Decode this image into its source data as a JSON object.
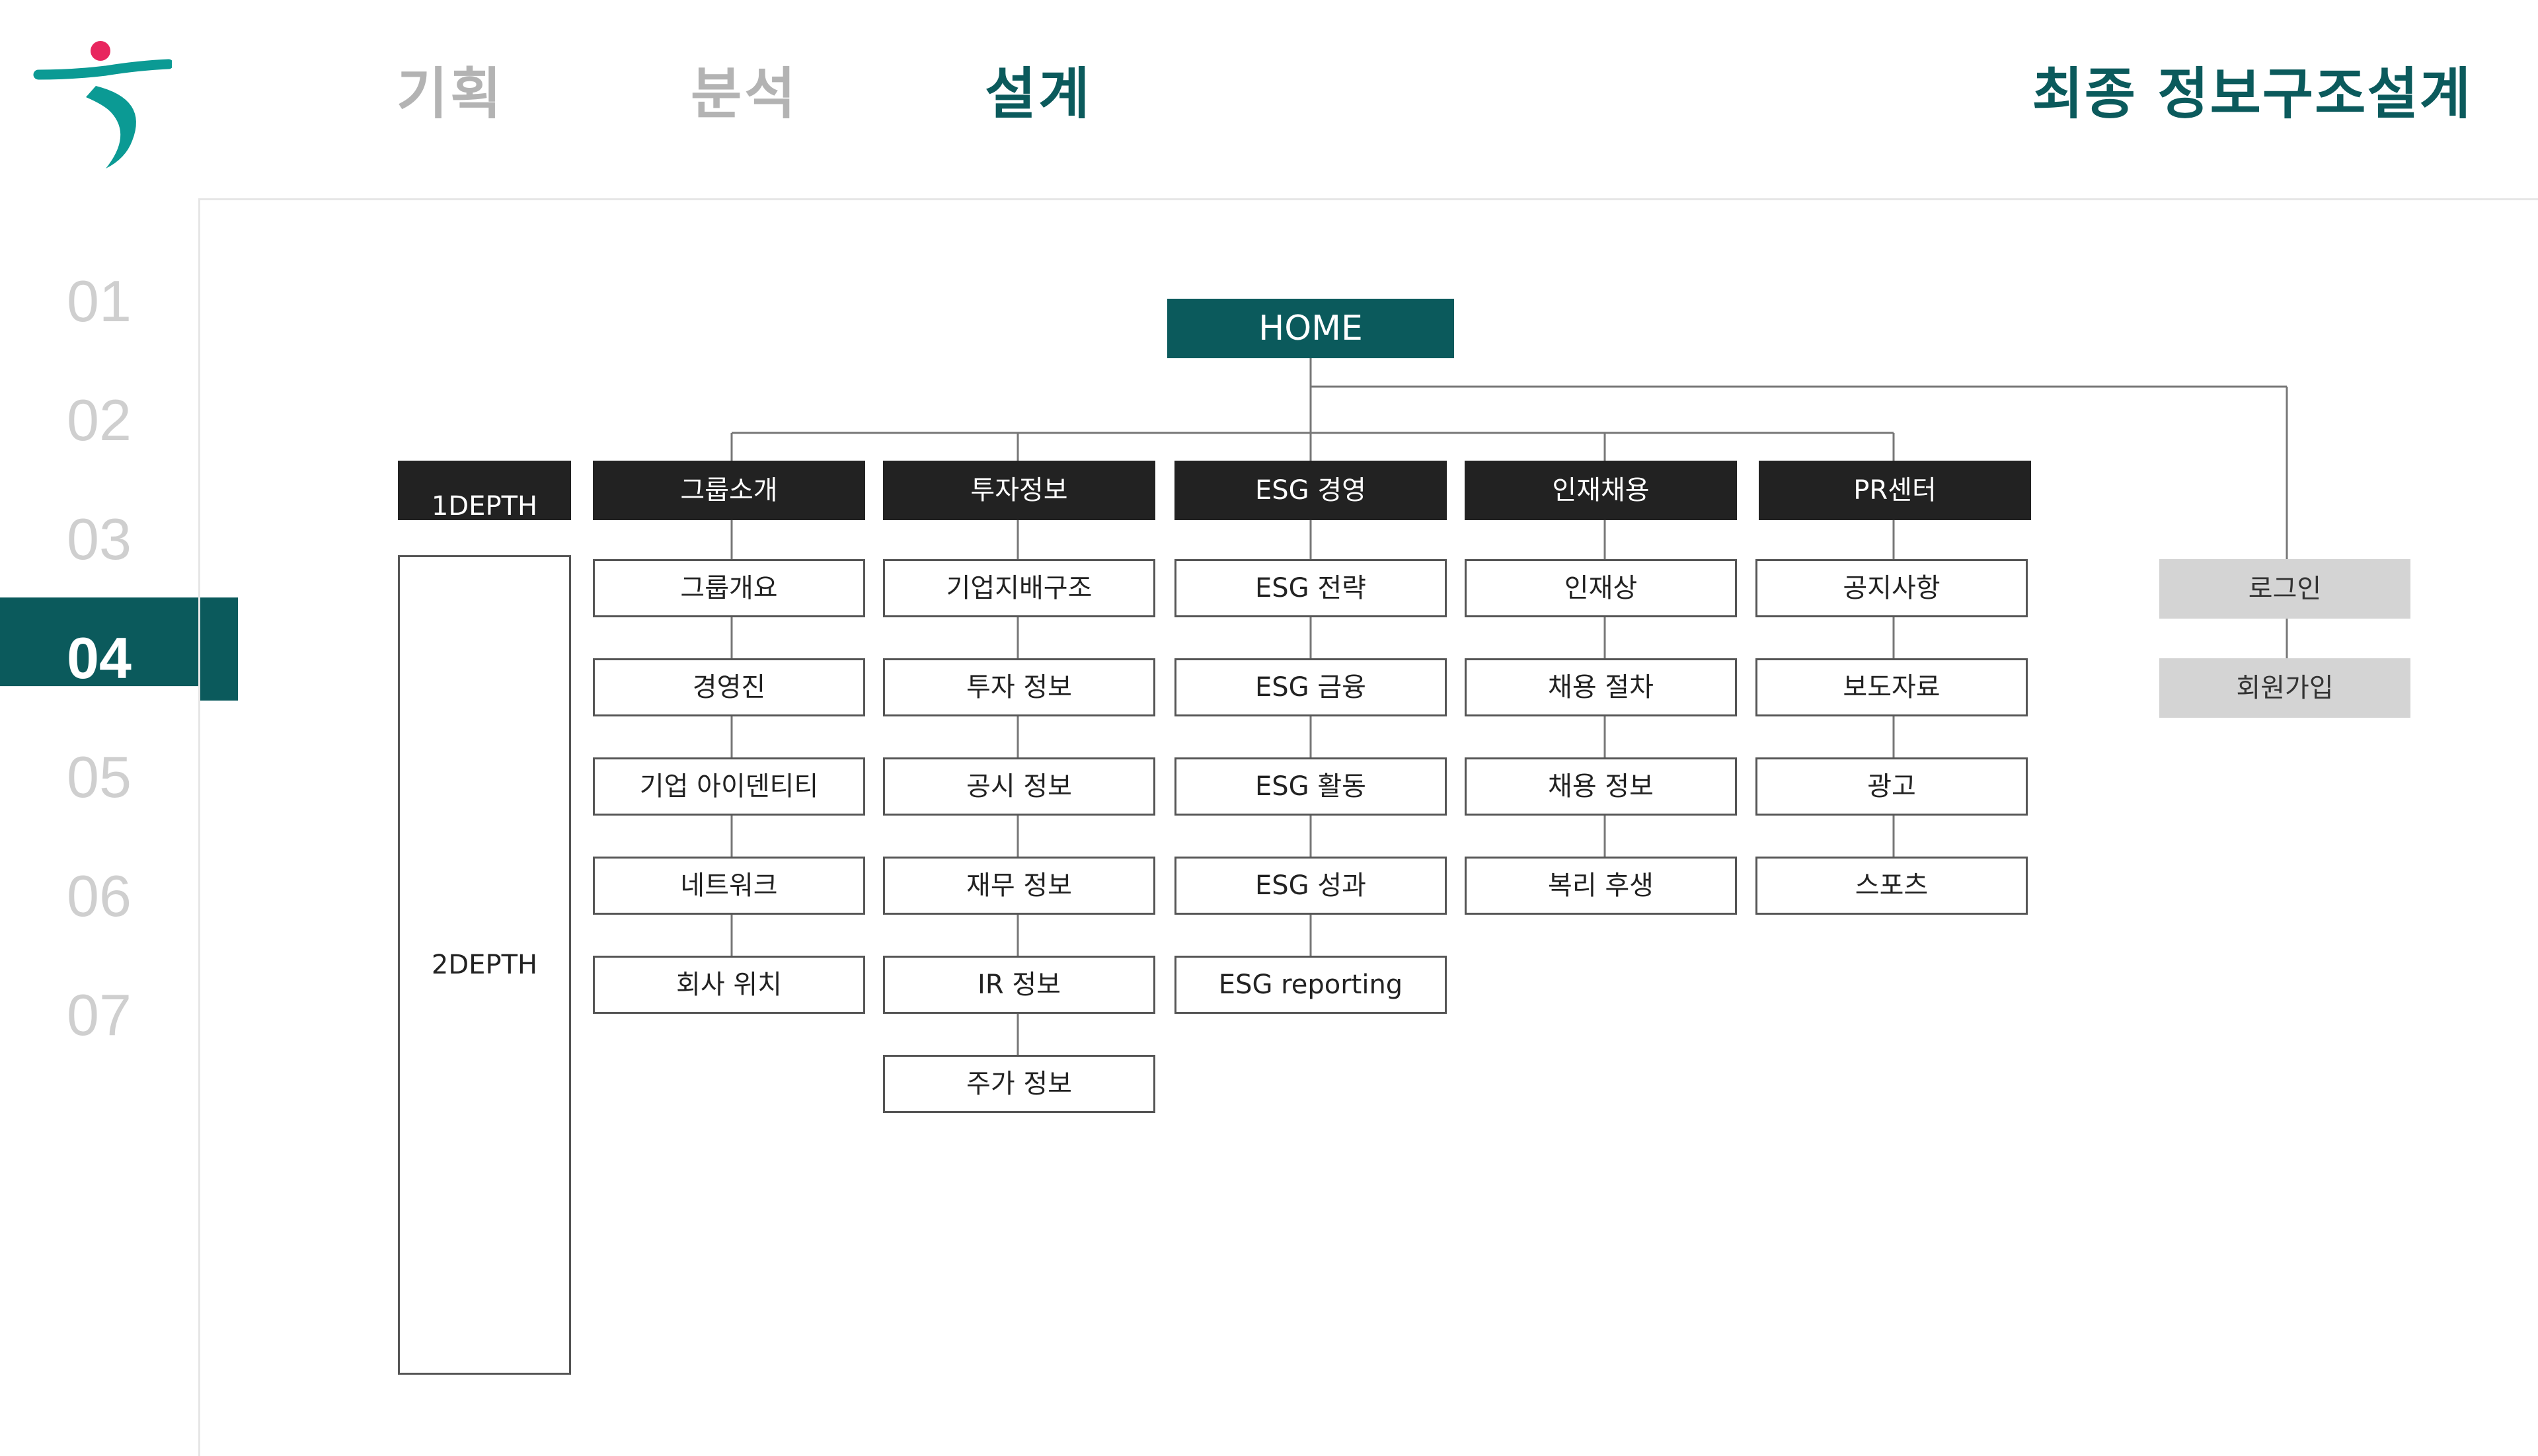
{
  "header": {
    "tabs": [
      {
        "label": "기획",
        "active": false
      },
      {
        "label": "분석",
        "active": false
      },
      {
        "label": "설계",
        "active": true
      }
    ],
    "page_title": "최종 정보구조설계"
  },
  "steps": [
    {
      "label": "01",
      "active": false
    },
    {
      "label": "02",
      "active": false
    },
    {
      "label": "03",
      "active": false
    },
    {
      "label": "04",
      "active": true
    },
    {
      "label": "05",
      "active": false
    },
    {
      "label": "06",
      "active": false
    },
    {
      "label": "07",
      "active": false
    }
  ],
  "sitemap": {
    "home": "HOME",
    "depth1_label": "1DEPTH",
    "depth2_label": "2DEPTH",
    "categories": [
      {
        "label": "그룹소개",
        "children": [
          "그룹개요",
          "경영진",
          "기업 아이덴티티",
          "네트워크",
          "회사 위치"
        ]
      },
      {
        "label": "투자정보",
        "children": [
          "기업지배구조",
          "투자 정보",
          "공시 정보",
          "재무 정보",
          "IR 정보",
          "주가 정보"
        ]
      },
      {
        "label": "ESG 경영",
        "children": [
          "ESG 전략",
          "ESG 금융",
          "ESG 활동",
          "ESG 성과",
          "ESG reporting"
        ]
      },
      {
        "label": "인재채용",
        "children": [
          "인재상",
          "채용 절차",
          "채용 정보",
          "복리 후생"
        ]
      },
      {
        "label": "PR센터",
        "children": [
          "공지사항",
          "보도자료",
          "광고",
          "스포츠"
        ]
      }
    ],
    "utility": [
      "로그인",
      "회원가입"
    ]
  },
  "colors": {
    "brand_teal": "#0b5a5c",
    "logo_teal": "#0b9a94",
    "logo_pink": "#e8265e",
    "category_bg": "#222222",
    "utility_bg": "#d4d4d4"
  },
  "icons": {
    "logo": "hana-person-logo"
  }
}
